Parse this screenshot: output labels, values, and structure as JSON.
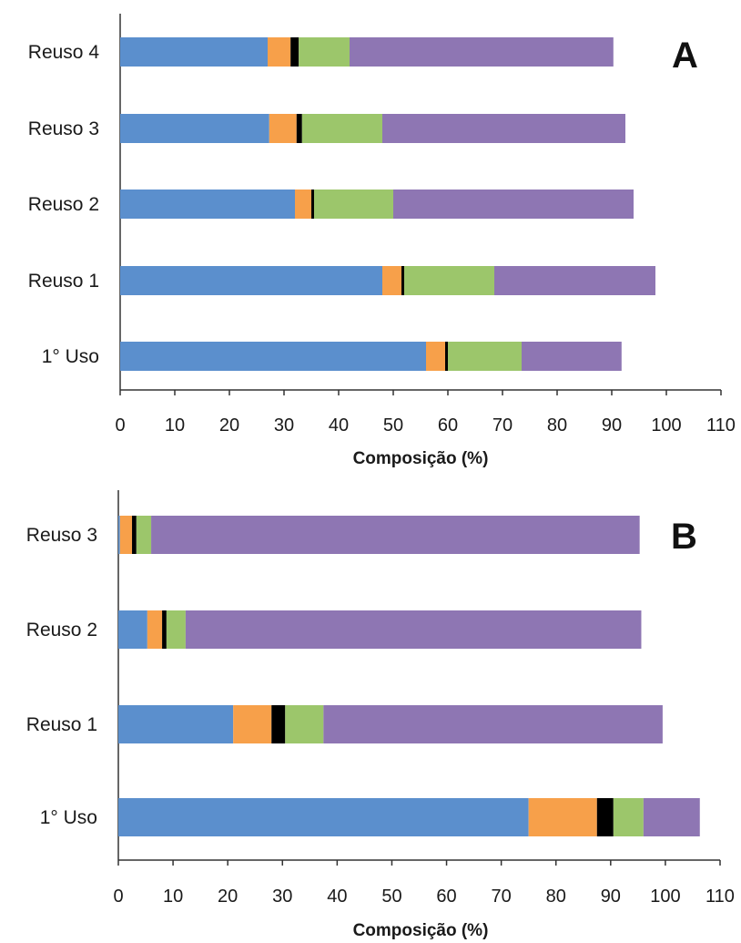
{
  "chart_data": [
    {
      "type": "bar",
      "orientation": "horizontal",
      "stacked": true,
      "panel_label": "A",
      "xlabel": "Composição (%)",
      "xlim": [
        0,
        110
      ],
      "xticks": [
        0,
        10,
        20,
        30,
        40,
        50,
        60,
        70,
        80,
        90,
        100,
        110
      ],
      "grid": false,
      "legend": "none",
      "categories": [
        "Reuso 4",
        "Reuso 3",
        "Reuso 2",
        "Reuso 1",
        "1° Uso"
      ],
      "series": [
        {
          "color": "#5B8FCD",
          "values": [
            27,
            27.3,
            32,
            48,
            56
          ]
        },
        {
          "color": "#F7A04A",
          "values": [
            4.2,
            5,
            3,
            3.5,
            3.5
          ]
        },
        {
          "color": "#000000",
          "values": [
            1.5,
            1,
            0.5,
            0.5,
            0.5
          ]
        },
        {
          "color": "#9CC66B",
          "values": [
            9.3,
            14.7,
            14.5,
            16.5,
            13.5
          ]
        },
        {
          "color": "#8E76B3",
          "values": [
            48.3,
            44.5,
            44,
            29.5,
            18.3
          ]
        }
      ]
    },
    {
      "type": "bar",
      "orientation": "horizontal",
      "stacked": true,
      "panel_label": "B",
      "xlabel": "Composição (%)",
      "xlim": [
        0,
        110
      ],
      "xticks": [
        0,
        10,
        20,
        30,
        40,
        50,
        60,
        70,
        80,
        90,
        100,
        110
      ],
      "grid": false,
      "legend": "none",
      "categories": [
        "Reuso 3",
        "Reuso 2",
        "Reuso 1",
        "1° Uso"
      ],
      "series": [
        {
          "color": "#5B8FCD",
          "values": [
            0.3,
            5.3,
            21,
            75
          ]
        },
        {
          "color": "#F7A04A",
          "values": [
            2.2,
            2.7,
            7,
            12.5
          ]
        },
        {
          "color": "#000000",
          "values": [
            0.8,
            0.8,
            2.5,
            3
          ]
        },
        {
          "color": "#9CC66B",
          "values": [
            2.7,
            3.5,
            7,
            5.5
          ]
        },
        {
          "color": "#8E76B3",
          "values": [
            89.3,
            83.3,
            62,
            10.3
          ]
        }
      ]
    }
  ]
}
